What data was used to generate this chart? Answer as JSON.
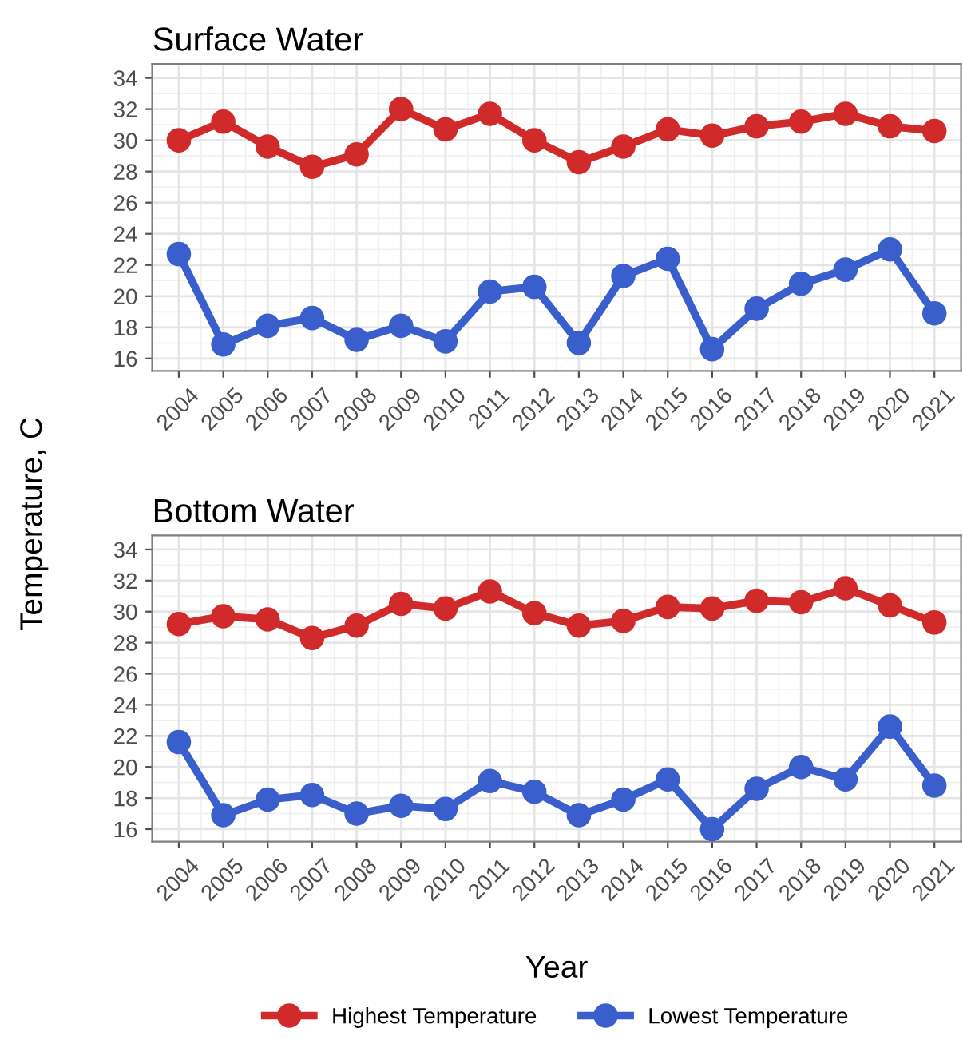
{
  "chart_data": [
    {
      "type": "line",
      "title": "Surface Water",
      "ylabel": "Temperature, C",
      "categories": [
        "2004",
        "2005",
        "2006",
        "2007",
        "2008",
        "2009",
        "2010",
        "2011",
        "2012",
        "2013",
        "2014",
        "2015",
        "2016",
        "2017",
        "2018",
        "2019",
        "2020",
        "2021"
      ],
      "series": [
        {
          "name": "Highest Temperature",
          "color": "#d12a2a",
          "values": [
            30.0,
            31.2,
            29.6,
            28.3,
            29.1,
            32.0,
            30.7,
            31.7,
            30.0,
            28.6,
            29.6,
            30.7,
            30.3,
            30.9,
            31.2,
            31.7,
            30.9,
            30.6
          ]
        },
        {
          "name": "Lowest Temperature",
          "color": "#3a5fcd",
          "values": [
            22.7,
            16.9,
            18.1,
            18.6,
            17.2,
            18.1,
            17.1,
            20.3,
            20.6,
            17.0,
            21.3,
            22.4,
            16.6,
            19.2,
            20.8,
            21.7,
            23.0,
            18.9
          ]
        }
      ],
      "ylim": [
        15.2,
        34.9
      ],
      "yticks": [
        16,
        18,
        20,
        22,
        24,
        26,
        28,
        30,
        32,
        34
      ],
      "grid": true,
      "marker": "circle",
      "line_style": "solid",
      "legend": "bottom"
    },
    {
      "type": "line",
      "title": "Bottom Water",
      "xlabel": "Year",
      "categories": [
        "2004",
        "2005",
        "2006",
        "2007",
        "2008",
        "2009",
        "2010",
        "2011",
        "2012",
        "2013",
        "2014",
        "2015",
        "2016",
        "2017",
        "2018",
        "2019",
        "2020",
        "2021"
      ],
      "series": [
        {
          "name": "Highest Temperature",
          "color": "#d12a2a",
          "values": [
            29.2,
            29.7,
            29.5,
            28.3,
            29.1,
            30.5,
            30.2,
            31.3,
            29.9,
            29.1,
            29.4,
            30.3,
            30.2,
            30.7,
            30.6,
            31.5,
            30.4,
            29.3
          ]
        },
        {
          "name": "Lowest Temperature",
          "color": "#3a5fcd",
          "values": [
            21.6,
            16.9,
            17.9,
            18.2,
            17.0,
            17.5,
            17.3,
            19.1,
            18.4,
            16.9,
            17.9,
            19.2,
            16.0,
            18.6,
            20.0,
            19.2,
            22.6,
            18.8
          ]
        }
      ],
      "ylim": [
        15.2,
        34.9
      ],
      "yticks": [
        16,
        18,
        20,
        22,
        24,
        26,
        28,
        30,
        32,
        34
      ],
      "grid": true,
      "marker": "circle",
      "line_style": "solid",
      "legend": "bottom"
    }
  ]
}
